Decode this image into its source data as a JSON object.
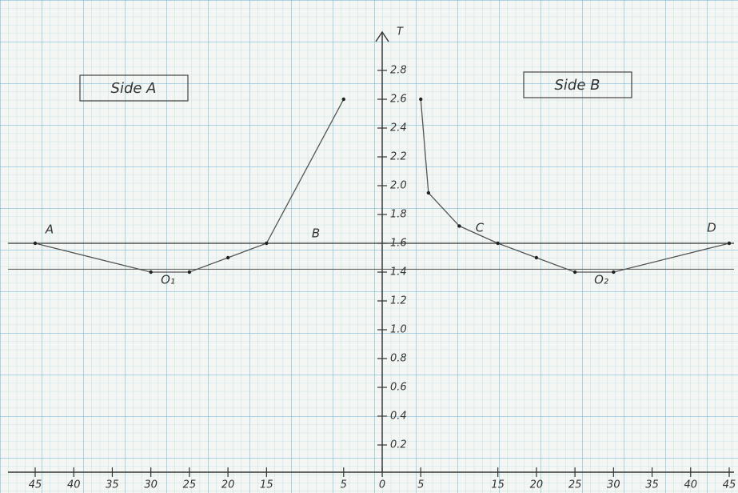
{
  "chart_data": {
    "type": "line",
    "y_label": "T",
    "x": [
      -45,
      -30,
      -25,
      -20,
      -15,
      -5
    ],
    "series": [
      {
        "name": "Side A",
        "color": "#555555",
        "x": [
          -45,
          -30,
          -25,
          -20,
          -15,
          -5
        ],
        "values": [
          1.6,
          1.4,
          1.4,
          1.5,
          1.6,
          2.6
        ]
      },
      {
        "name": "Side B",
        "color": "#555555",
        "x": [
          5,
          6,
          10,
          15,
          20,
          25,
          30,
          45
        ],
        "values": [
          2.6,
          1.95,
          1.72,
          1.6,
          1.5,
          1.4,
          1.4,
          1.6
        ]
      }
    ],
    "annotations": [
      "A",
      "B",
      "C",
      "D",
      "O₁",
      "O₂"
    ],
    "xlim": [
      -45,
      45
    ],
    "ylim": [
      0,
      2.9
    ],
    "xticks": [
      {
        "value": -45,
        "label": "45"
      },
      {
        "value": -40,
        "label": "40"
      },
      {
        "value": -35,
        "label": "35"
      },
      {
        "value": -30,
        "label": "30"
      },
      {
        "value": -25,
        "label": "25"
      },
      {
        "value": -20,
        "label": "20"
      },
      {
        "value": -15,
        "label": "15"
      },
      {
        "value": -5,
        "label": "5"
      },
      0,
      5,
      15,
      20,
      25,
      30,
      35,
      40,
      45
    ],
    "yticks": [
      0.2,
      0.4,
      0.6,
      0.8,
      {
        "value": 1,
        "label": "1.0"
      },
      1.2,
      1.4,
      1.6,
      1.8,
      {
        "value": 2,
        "label": "2.0"
      },
      2.2,
      2.4,
      2.6,
      2.8
    ],
    "grid": true
  }
}
